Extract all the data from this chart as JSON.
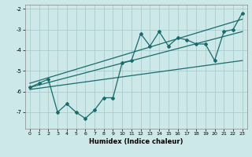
{
  "title": "",
  "xlabel": "Humidex (Indice chaleur)",
  "bg_color": "#cce8e8",
  "grid_color": "#aacccc",
  "line_color": "#1a6b6b",
  "xlim": [
    -0.5,
    23.5
  ],
  "ylim": [
    -7.8,
    -1.8
  ],
  "yticks": [
    -7,
    -6,
    -5,
    -4,
    -3,
    -2
  ],
  "xticks": [
    0,
    1,
    2,
    3,
    4,
    5,
    6,
    7,
    8,
    9,
    10,
    11,
    12,
    13,
    14,
    15,
    16,
    17,
    18,
    19,
    20,
    21,
    22,
    23
  ],
  "series1_x": [
    0,
    1,
    2,
    3,
    4,
    5,
    6,
    7,
    8,
    9,
    10,
    11,
    12,
    13,
    14,
    15,
    16,
    17,
    18,
    19,
    20,
    21,
    22,
    23
  ],
  "series1_y": [
    -5.8,
    -5.6,
    -5.4,
    -7.0,
    -6.6,
    -7.0,
    -7.3,
    -6.9,
    -6.3,
    -6.3,
    -4.6,
    -4.5,
    -3.2,
    -3.8,
    -3.1,
    -3.8,
    -3.4,
    -3.5,
    -3.7,
    -3.7,
    -4.5,
    -3.1,
    -3.0,
    -2.2
  ],
  "line1_x": [
    0,
    23
  ],
  "line1_y": [
    -5.6,
    -2.5
  ],
  "line2_x": [
    0,
    23
  ],
  "line2_y": [
    -5.8,
    -3.1
  ],
  "line3_x": [
    0,
    23
  ],
  "line3_y": [
    -5.9,
    -4.5
  ]
}
